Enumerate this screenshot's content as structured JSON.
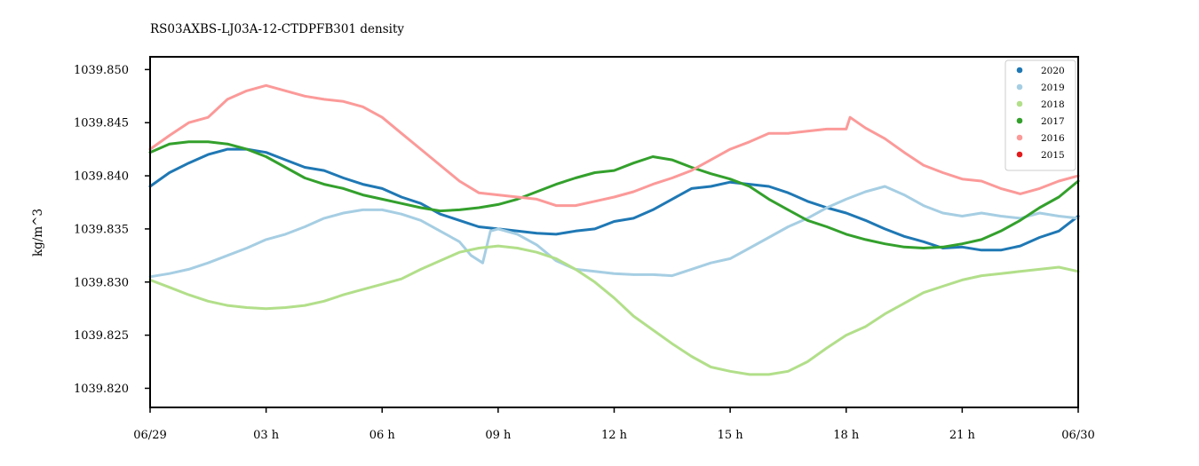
{
  "chart_data": {
    "type": "line",
    "title": "RS03AXBS-LJ03A-12-CTDPFB301 density",
    "xlabel": "",
    "ylabel": "kg/m^3",
    "xlim": [
      0,
      24
    ],
    "ylim": [
      1039.8182,
      1039.8512
    ],
    "x_ticks": [
      {
        "value": 0,
        "label": "06/29"
      },
      {
        "value": 3,
        "label": "03 h"
      },
      {
        "value": 6,
        "label": "06 h"
      },
      {
        "value": 9,
        "label": "09 h"
      },
      {
        "value": 12,
        "label": "12 h"
      },
      {
        "value": 15,
        "label": "15 h"
      },
      {
        "value": 18,
        "label": "18 h"
      },
      {
        "value": 21,
        "label": "21 h"
      },
      {
        "value": 24,
        "label": "06/30"
      }
    ],
    "y_ticks": [
      {
        "value": 1039.82,
        "label": "1039.820"
      },
      {
        "value": 1039.825,
        "label": "1039.825"
      },
      {
        "value": 1039.83,
        "label": "1039.830"
      },
      {
        "value": 1039.835,
        "label": "1039.835"
      },
      {
        "value": 1039.84,
        "label": "1039.840"
      },
      {
        "value": 1039.845,
        "label": "1039.845"
      },
      {
        "value": 1039.85,
        "label": "1039.850"
      }
    ],
    "grid": false,
    "legend_position": "top-right",
    "series": [
      {
        "name": "2020",
        "color": "#1f78b4",
        "x": [
          0,
          0.5,
          1,
          1.5,
          2,
          2.5,
          3,
          3.5,
          4,
          4.5,
          5,
          5.5,
          6,
          6.5,
          7,
          7.5,
          8,
          8.5,
          9,
          9.5,
          10,
          10.5,
          11,
          11.5,
          12,
          12.5,
          13,
          13.5,
          14,
          14.5,
          15,
          15.5,
          16,
          16.5,
          17,
          17.5,
          18,
          18.5,
          19,
          19.5,
          20,
          20.5,
          21,
          21.5,
          22,
          22.5,
          23,
          23.5,
          24
        ],
        "y": [
          1039.839,
          1039.8403,
          1039.8412,
          1039.842,
          1039.8425,
          1039.8425,
          1039.8422,
          1039.8415,
          1039.8408,
          1039.8405,
          1039.8398,
          1039.8392,
          1039.8388,
          1039.838,
          1039.8374,
          1039.8364,
          1039.8358,
          1039.8352,
          1039.835,
          1039.8348,
          1039.8346,
          1039.8345,
          1039.8348,
          1039.835,
          1039.8357,
          1039.836,
          1039.8368,
          1039.8378,
          1039.8388,
          1039.839,
          1039.8394,
          1039.8392,
          1039.839,
          1039.8384,
          1039.8376,
          1039.837,
          1039.8365,
          1039.8358,
          1039.835,
          1039.8343,
          1039.8338,
          1039.8332,
          1039.8333,
          1039.833,
          1039.833,
          1039.8334,
          1039.8342,
          1039.8348,
          1039.8362
        ]
      },
      {
        "name": "2019",
        "color": "#a6cee3",
        "x": [
          0,
          0.5,
          1,
          1.5,
          2,
          2.5,
          3,
          3.5,
          4,
          4.5,
          5,
          5.5,
          6,
          6.5,
          7,
          7.5,
          8,
          8.3,
          8.6,
          8.8,
          9,
          9.5,
          10,
          10.5,
          11,
          11.5,
          12,
          12.5,
          13,
          13.5,
          14,
          14.5,
          15,
          15.5,
          16,
          16.5,
          17,
          17.5,
          18,
          18.5,
          19,
          19.5,
          20,
          20.5,
          21,
          21.5,
          22,
          22.5,
          23,
          23.5,
          24
        ],
        "y": [
          1039.8305,
          1039.8308,
          1039.8312,
          1039.8318,
          1039.8325,
          1039.8332,
          1039.834,
          1039.8345,
          1039.8352,
          1039.836,
          1039.8365,
          1039.8368,
          1039.8368,
          1039.8364,
          1039.8358,
          1039.8348,
          1039.8338,
          1039.8325,
          1039.8318,
          1039.8348,
          1039.835,
          1039.8345,
          1039.8335,
          1039.832,
          1039.8312,
          1039.831,
          1039.8308,
          1039.8307,
          1039.8307,
          1039.8306,
          1039.8312,
          1039.8318,
          1039.8322,
          1039.8332,
          1039.8342,
          1039.8352,
          1039.836,
          1039.837,
          1039.8378,
          1039.8385,
          1039.839,
          1039.8382,
          1039.8372,
          1039.8365,
          1039.8362,
          1039.8365,
          1039.8362,
          1039.836,
          1039.8365,
          1039.8362,
          1039.836
        ]
      },
      {
        "name": "2018",
        "color": "#b2df8a",
        "x": [
          0,
          0.5,
          1,
          1.5,
          2,
          2.5,
          3,
          3.5,
          4,
          4.5,
          5,
          5.5,
          6,
          6.5,
          7,
          7.5,
          8,
          8.5,
          9,
          9.5,
          10,
          10.5,
          11,
          11.5,
          12,
          12.5,
          13,
          13.5,
          14,
          14.5,
          15,
          15.5,
          16,
          16.5,
          17,
          17.5,
          18,
          18.5,
          19,
          19.5,
          20,
          20.5,
          21,
          21.5,
          22,
          22.5,
          23,
          23.5,
          24
        ],
        "y": [
          1039.8302,
          1039.8295,
          1039.8288,
          1039.8282,
          1039.8278,
          1039.8276,
          1039.8275,
          1039.8276,
          1039.8278,
          1039.8282,
          1039.8288,
          1039.8293,
          1039.8298,
          1039.8303,
          1039.8312,
          1039.832,
          1039.8328,
          1039.8332,
          1039.8334,
          1039.8332,
          1039.8328,
          1039.8322,
          1039.8312,
          1039.83,
          1039.8285,
          1039.8268,
          1039.8255,
          1039.8242,
          1039.823,
          1039.822,
          1039.8216,
          1039.8213,
          1039.8213,
          1039.8216,
          1039.8225,
          1039.8238,
          1039.825,
          1039.8258,
          1039.827,
          1039.828,
          1039.829,
          1039.8296,
          1039.8302,
          1039.8306,
          1039.8308,
          1039.831,
          1039.8312,
          1039.8314,
          1039.831
        ]
      },
      {
        "name": "2017",
        "color": "#33a02c",
        "x": [
          0,
          0.5,
          1,
          1.5,
          2,
          2.5,
          3,
          3.5,
          4,
          4.5,
          5,
          5.5,
          6,
          6.5,
          7,
          7.5,
          8,
          8.5,
          9,
          9.5,
          10,
          10.5,
          11,
          11.5,
          12,
          12.5,
          13,
          13.5,
          14,
          14.5,
          15,
          15.5,
          16,
          16.5,
          17,
          17.5,
          18,
          18.5,
          19,
          19.5,
          20,
          20.5,
          21,
          21.5,
          22,
          22.5,
          23,
          23.5,
          24
        ],
        "y": [
          1039.8422,
          1039.843,
          1039.8432,
          1039.8432,
          1039.843,
          1039.8425,
          1039.8418,
          1039.8408,
          1039.8398,
          1039.8392,
          1039.8388,
          1039.8382,
          1039.8378,
          1039.8374,
          1039.837,
          1039.8367,
          1039.8368,
          1039.837,
          1039.8373,
          1039.8378,
          1039.8385,
          1039.8392,
          1039.8398,
          1039.8403,
          1039.8405,
          1039.8412,
          1039.8418,
          1039.8415,
          1039.8408,
          1039.8402,
          1039.8397,
          1039.839,
          1039.8378,
          1039.8368,
          1039.8358,
          1039.8352,
          1039.8345,
          1039.834,
          1039.8336,
          1039.8333,
          1039.8332,
          1039.8333,
          1039.8336,
          1039.834,
          1039.8348,
          1039.8358,
          1039.837,
          1039.838,
          1039.8395
        ]
      },
      {
        "name": "2016",
        "color": "#fb9a99",
        "x": [
          0,
          0.5,
          1,
          1.5,
          2,
          2.5,
          3,
          3.5,
          4,
          4.5,
          5,
          5.5,
          6,
          6.5,
          7,
          7.5,
          8,
          8.5,
          9,
          9.5,
          10,
          10.5,
          11,
          11.5,
          12,
          12.5,
          13,
          13.5,
          14,
          14.5,
          15,
          15.5,
          16,
          16.5,
          17,
          17.5,
          18,
          18.1,
          18.5,
          19,
          19.5,
          20,
          20.5,
          21,
          21.5,
          22,
          22.5,
          23,
          23.5,
          24
        ],
        "y": [
          1039.8425,
          1039.8438,
          1039.845,
          1039.8455,
          1039.8472,
          1039.848,
          1039.8485,
          1039.848,
          1039.8475,
          1039.8472,
          1039.847,
          1039.8465,
          1039.8455,
          1039.844,
          1039.8425,
          1039.841,
          1039.8395,
          1039.8384,
          1039.8382,
          1039.838,
          1039.8378,
          1039.8372,
          1039.8372,
          1039.8376,
          1039.838,
          1039.8385,
          1039.8392,
          1039.8398,
          1039.8405,
          1039.8415,
          1039.8425,
          1039.8432,
          1039.844,
          1039.844,
          1039.8442,
          1039.8444,
          1039.8444,
          1039.8455,
          1039.8445,
          1039.8435,
          1039.8422,
          1039.841,
          1039.8403,
          1039.8397,
          1039.8395,
          1039.8388,
          1039.8383,
          1039.8388,
          1039.8395,
          1039.84
        ]
      },
      {
        "name": "2015",
        "color": "#e31a1c",
        "x": [],
        "y": []
      }
    ]
  }
}
